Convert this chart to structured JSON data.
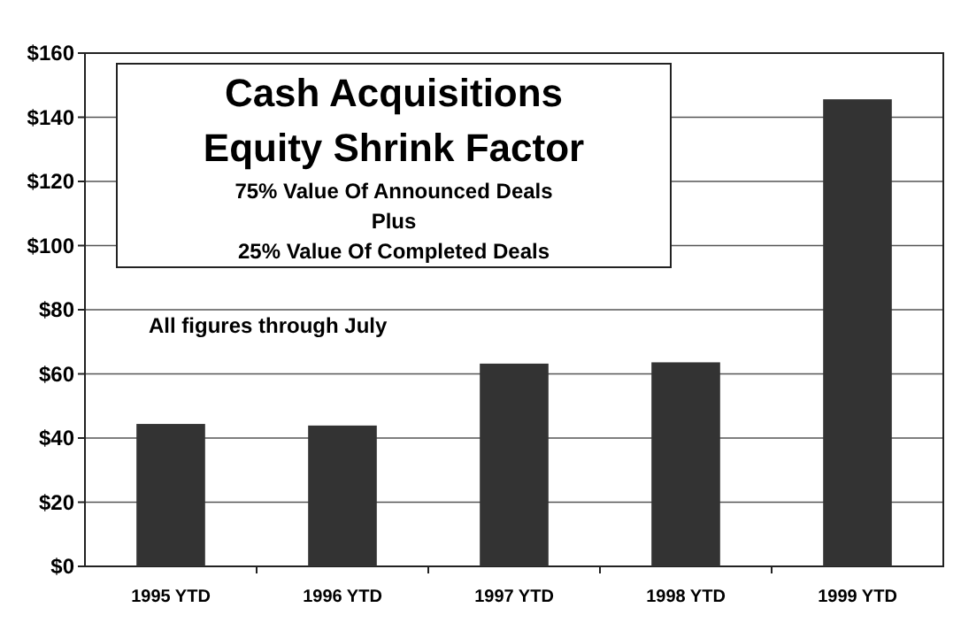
{
  "chart_data": {
    "type": "bar",
    "title": "Cash Acquisitions\nEquity Shrink Factor",
    "subtitle": "75% Value Of Announced Deals\nPlus\n25% Value Of Completed Deals",
    "annotations": [
      "All figures through July"
    ],
    "categories": [
      "1995 YTD",
      "1996 YTD",
      "1997 YTD",
      "1998 YTD",
      "1999 YTD"
    ],
    "values": [
      44.4,
      43.9,
      63.2,
      63.6,
      145.6
    ],
    "color": "#333333",
    "ylim": [
      0,
      160
    ],
    "yticks": [
      {
        "value": 0,
        "label": "$0"
      },
      {
        "value": 20,
        "label": "$20"
      },
      {
        "value": 40,
        "label": "$40"
      },
      {
        "value": 60,
        "label": "$60"
      },
      {
        "value": 80,
        "label": "$80"
      },
      {
        "value": 100,
        "label": "$100"
      },
      {
        "value": 120,
        "label": "$120"
      },
      {
        "value": 140,
        "label": "$140"
      },
      {
        "value": 160,
        "label": "$160"
      }
    ],
    "grid": "y"
  }
}
